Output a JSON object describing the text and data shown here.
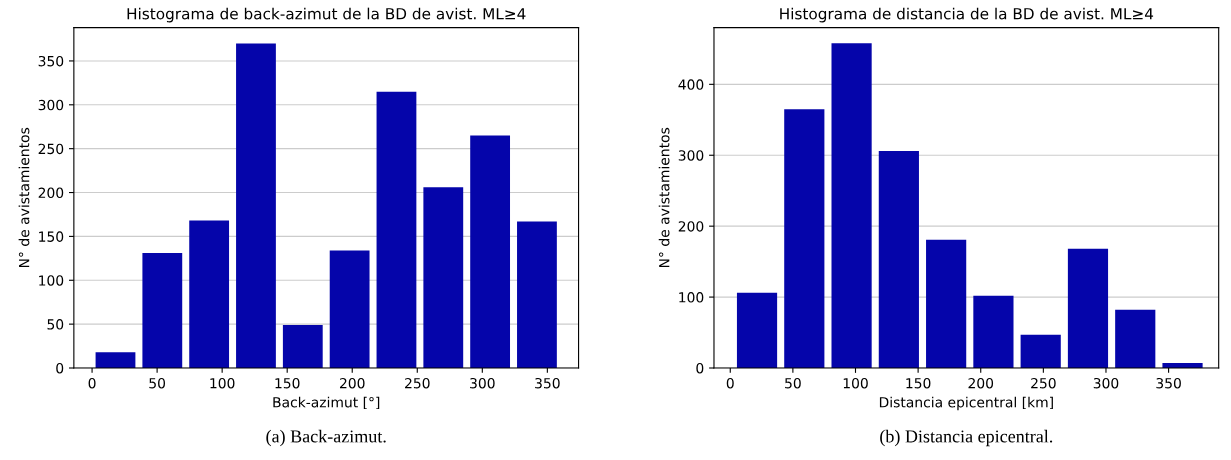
{
  "chart_data": [
    {
      "type": "histogram",
      "title": "Histograma de back-azimut de la BD de avist. ML≥4",
      "xlabel": "Back-azimut [°]",
      "ylabel": "N° de avistamientos",
      "color": "#0505aa",
      "bins": [
        0,
        36,
        72,
        108,
        144,
        180,
        216,
        252,
        288,
        324,
        360
      ],
      "values": [
        18,
        131,
        168,
        370,
        49,
        134,
        315,
        206,
        265,
        167
      ],
      "xlim": [
        -14,
        374
      ],
      "ylim": [
        0,
        388
      ],
      "xticks": [
        0,
        50,
        100,
        150,
        200,
        250,
        300,
        350
      ],
      "yticks": [
        0,
        50,
        100,
        150,
        200,
        250,
        300,
        350
      ],
      "grid": "y",
      "annotations": [
        "(a) Back-azimut."
      ]
    },
    {
      "type": "histogram",
      "title": "Histograma de distancia de la BD de avist. ML≥4",
      "xlabel": "Distancia epicentral [km]",
      "ylabel": "N° de avistamientos",
      "color": "#0505aa",
      "bins": [
        2.5,
        40.25,
        78,
        115.75,
        153.5,
        191.25,
        229,
        266.75,
        304.5,
        342.25,
        380
      ],
      "values": [
        106,
        365,
        458,
        306,
        181,
        102,
        47,
        168,
        82,
        7
      ],
      "xlim": [
        -13,
        390
      ],
      "ylim": [
        0,
        480
      ],
      "xticks": [
        0,
        50,
        100,
        150,
        200,
        250,
        300,
        350
      ],
      "yticks": [
        0,
        100,
        200,
        300,
        400
      ],
      "grid": "y",
      "annotations": [
        "(b) Distancia epicentral."
      ]
    }
  ]
}
